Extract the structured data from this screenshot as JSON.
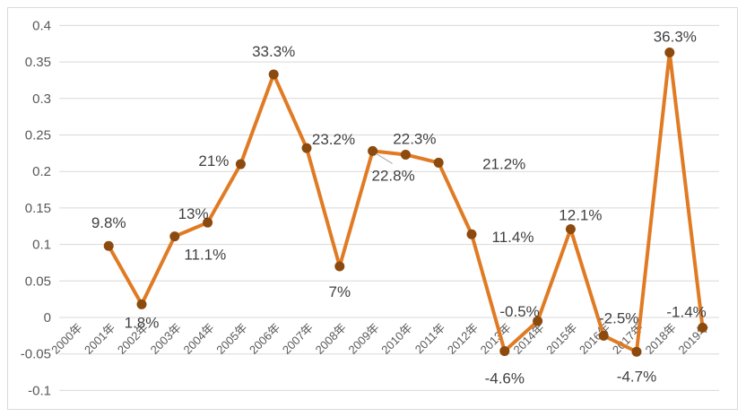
{
  "chart_data": {
    "type": "line",
    "title": "",
    "xlabel": "",
    "ylabel": "",
    "categories": [
      "2000年",
      "2001年",
      "2002年",
      "2003年",
      "2004年",
      "2005年",
      "2006年",
      "2007年",
      "2008年",
      "2009年",
      "2010年",
      "2011年",
      "2012年",
      "2013年",
      "2014年",
      "2015年",
      "2016年",
      "2017年",
      "2018年",
      "2019年"
    ],
    "values": [
      null,
      0.098,
      0.018,
      0.111,
      0.13,
      0.21,
      0.333,
      0.232,
      0.07,
      0.228,
      0.223,
      0.212,
      0.114,
      -0.046,
      -0.005,
      0.121,
      -0.025,
      -0.047,
      0.363,
      -0.014
    ],
    "data_labels": [
      "",
      "9.8%",
      "1.8%",
      "11.1%",
      "13%",
      "21%",
      "33.3%",
      "23.2%",
      "7%",
      "22.8%",
      "22.3%",
      "21.2%",
      "11.4%",
      "-4.6%",
      "-0.5%",
      "12.1%",
      "-2.5%",
      "-4.7%",
      "36.3%",
      "-1.4%"
    ],
    "ylim": [
      -0.1,
      0.4
    ],
    "yticks": [
      "-0.1",
      "-0.05",
      "0",
      "0.05",
      "0.1",
      "0.15",
      "0.2",
      "0.25",
      "0.3",
      "0.35",
      "0.4"
    ],
    "grid": true,
    "legend": "none",
    "colors": {
      "line": "#E07B24",
      "marker": "#8C4A0E",
      "grid": "#d9d9d9"
    }
  }
}
